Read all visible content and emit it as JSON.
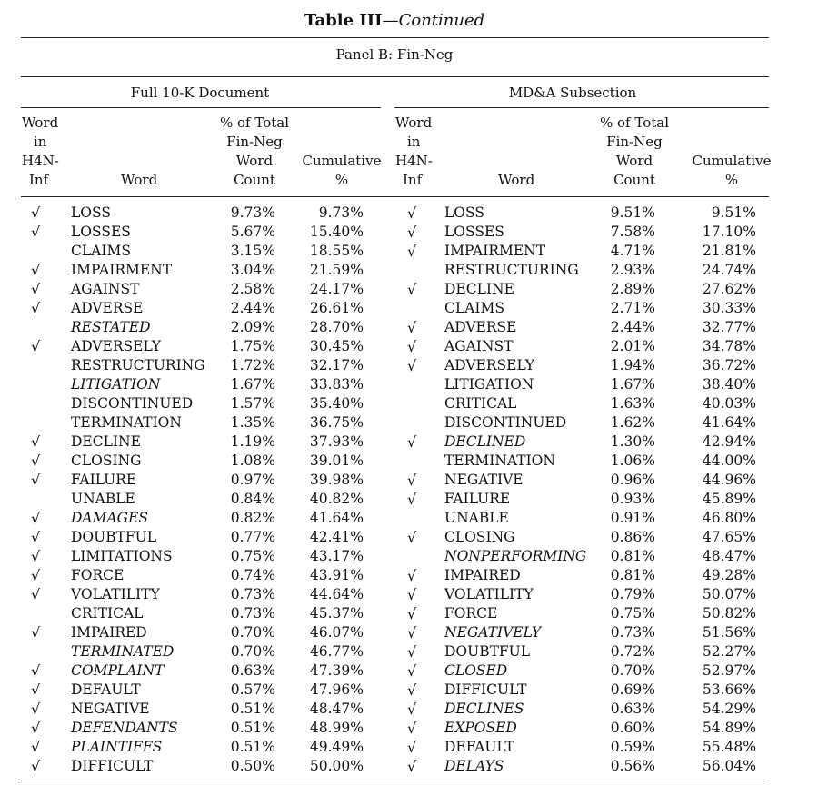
{
  "title": {
    "bold": "Table III",
    "italic": "—Continued"
  },
  "panel": "Panel B: Fin-Neg",
  "groups": {
    "left": "Full 10-K Document",
    "right": "MD&A Subsection"
  },
  "headers": {
    "word_in_h4n": [
      "Word",
      "in",
      "H4N-",
      "Inf"
    ],
    "word": "Word",
    "pct_total": [
      "% of Total",
      "Fin-Neg",
      "Word",
      "Count"
    ],
    "cumulative": [
      "Cumulative",
      "%"
    ]
  },
  "check_symbol": "√",
  "left_rows": [
    {
      "check": true,
      "word": "LOSS",
      "italic": false,
      "pct": "9.73%",
      "cum": "9.73%"
    },
    {
      "check": true,
      "word": "LOSSES",
      "italic": false,
      "pct": "5.67%",
      "cum": "15.40%"
    },
    {
      "check": false,
      "word": "CLAIMS",
      "italic": false,
      "pct": "3.15%",
      "cum": "18.55%"
    },
    {
      "check": true,
      "word": "IMPAIRMENT",
      "italic": false,
      "pct": "3.04%",
      "cum": "21.59%"
    },
    {
      "check": true,
      "word": "AGAINST",
      "italic": false,
      "pct": "2.58%",
      "cum": "24.17%"
    },
    {
      "check": true,
      "word": "ADVERSE",
      "italic": false,
      "pct": "2.44%",
      "cum": "26.61%"
    },
    {
      "check": false,
      "word": "RESTATED",
      "italic": true,
      "pct": "2.09%",
      "cum": "28.70%"
    },
    {
      "check": true,
      "word": "ADVERSELY",
      "italic": false,
      "pct": "1.75%",
      "cum": "30.45%"
    },
    {
      "check": false,
      "word": "RESTRUCTURING",
      "italic": false,
      "pct": "1.72%",
      "cum": "32.17%"
    },
    {
      "check": false,
      "word": "LITIGATION",
      "italic": true,
      "pct": "1.67%",
      "cum": "33.83%"
    },
    {
      "check": false,
      "word": "DISCONTINUED",
      "italic": false,
      "pct": "1.57%",
      "cum": "35.40%"
    },
    {
      "check": false,
      "word": "TERMINATION",
      "italic": false,
      "pct": "1.35%",
      "cum": "36.75%"
    },
    {
      "check": true,
      "word": "DECLINE",
      "italic": false,
      "pct": "1.19%",
      "cum": "37.93%"
    },
    {
      "check": true,
      "word": "CLOSING",
      "italic": false,
      "pct": "1.08%",
      "cum": "39.01%"
    },
    {
      "check": true,
      "word": "FAILURE",
      "italic": false,
      "pct": "0.97%",
      "cum": "39.98%"
    },
    {
      "check": false,
      "word": "UNABLE",
      "italic": false,
      "pct": "0.84%",
      "cum": "40.82%"
    },
    {
      "check": true,
      "word": "DAMAGES",
      "italic": true,
      "pct": "0.82%",
      "cum": "41.64%"
    },
    {
      "check": true,
      "word": "DOUBTFUL",
      "italic": false,
      "pct": "0.77%",
      "cum": "42.41%"
    },
    {
      "check": true,
      "word": "LIMITATIONS",
      "italic": false,
      "pct": "0.75%",
      "cum": "43.17%"
    },
    {
      "check": true,
      "word": "FORCE",
      "italic": false,
      "pct": "0.74%",
      "cum": "43.91%"
    },
    {
      "check": true,
      "word": "VOLATILITY",
      "italic": false,
      "pct": "0.73%",
      "cum": "44.64%"
    },
    {
      "check": false,
      "word": "CRITICAL",
      "italic": false,
      "pct": "0.73%",
      "cum": "45.37%"
    },
    {
      "check": true,
      "word": "IMPAIRED",
      "italic": false,
      "pct": "0.70%",
      "cum": "46.07%"
    },
    {
      "check": false,
      "word": "TERMINATED",
      "italic": true,
      "pct": "0.70%",
      "cum": "46.77%"
    },
    {
      "check": true,
      "word": "COMPLAINT",
      "italic": true,
      "pct": "0.63%",
      "cum": "47.39%"
    },
    {
      "check": true,
      "word": "DEFAULT",
      "italic": false,
      "pct": "0.57%",
      "cum": "47.96%"
    },
    {
      "check": true,
      "word": "NEGATIVE",
      "italic": false,
      "pct": "0.51%",
      "cum": "48.47%"
    },
    {
      "check": true,
      "word": "DEFENDANTS",
      "italic": true,
      "pct": "0.51%",
      "cum": "48.99%"
    },
    {
      "check": true,
      "word": "PLAINTIFFS",
      "italic": true,
      "pct": "0.51%",
      "cum": "49.49%"
    },
    {
      "check": true,
      "word": "DIFFICULT",
      "italic": false,
      "pct": "0.50%",
      "cum": "50.00%"
    }
  ],
  "right_rows": [
    {
      "check": true,
      "word": "LOSS",
      "italic": false,
      "pct": "9.51%",
      "cum": "9.51%"
    },
    {
      "check": true,
      "word": "LOSSES",
      "italic": false,
      "pct": "7.58%",
      "cum": "17.10%"
    },
    {
      "check": true,
      "word": "IMPAIRMENT",
      "italic": false,
      "pct": "4.71%",
      "cum": "21.81%"
    },
    {
      "check": false,
      "word": "RESTRUCTURING",
      "italic": false,
      "pct": "2.93%",
      "cum": "24.74%"
    },
    {
      "check": true,
      "word": "DECLINE",
      "italic": false,
      "pct": "2.89%",
      "cum": "27.62%"
    },
    {
      "check": false,
      "word": "CLAIMS",
      "italic": false,
      "pct": "2.71%",
      "cum": "30.33%"
    },
    {
      "check": true,
      "word": "ADVERSE",
      "italic": false,
      "pct": "2.44%",
      "cum": "32.77%"
    },
    {
      "check": true,
      "word": "AGAINST",
      "italic": false,
      "pct": "2.01%",
      "cum": "34.78%"
    },
    {
      "check": true,
      "word": "ADVERSELY",
      "italic": false,
      "pct": "1.94%",
      "cum": "36.72%"
    },
    {
      "check": false,
      "word": "LITIGATION",
      "italic": false,
      "pct": "1.67%",
      "cum": "38.40%"
    },
    {
      "check": false,
      "word": "CRITICAL",
      "italic": false,
      "pct": "1.63%",
      "cum": "40.03%"
    },
    {
      "check": false,
      "word": "DISCONTINUED",
      "italic": false,
      "pct": "1.62%",
      "cum": "41.64%"
    },
    {
      "check": true,
      "word": "DECLINED",
      "italic": true,
      "pct": "1.30%",
      "cum": "42.94%"
    },
    {
      "check": false,
      "word": "TERMINATION",
      "italic": false,
      "pct": "1.06%",
      "cum": "44.00%"
    },
    {
      "check": true,
      "word": "NEGATIVE",
      "italic": false,
      "pct": "0.96%",
      "cum": "44.96%"
    },
    {
      "check": true,
      "word": "FAILURE",
      "italic": false,
      "pct": "0.93%",
      "cum": "45.89%"
    },
    {
      "check": false,
      "word": "UNABLE",
      "italic": false,
      "pct": "0.91%",
      "cum": "46.80%"
    },
    {
      "check": true,
      "word": "CLOSING",
      "italic": false,
      "pct": "0.86%",
      "cum": "47.65%"
    },
    {
      "check": false,
      "word": "NONPERFORMING",
      "italic": true,
      "pct": "0.81%",
      "cum": "48.47%"
    },
    {
      "check": true,
      "word": "IMPAIRED",
      "italic": false,
      "pct": "0.81%",
      "cum": "49.28%"
    },
    {
      "check": true,
      "word": "VOLATILITY",
      "italic": false,
      "pct": "0.79%",
      "cum": "50.07%"
    },
    {
      "check": true,
      "word": "FORCE",
      "italic": false,
      "pct": "0.75%",
      "cum": "50.82%"
    },
    {
      "check": true,
      "word": "NEGATIVELY",
      "italic": true,
      "pct": "0.73%",
      "cum": "51.56%"
    },
    {
      "check": true,
      "word": "DOUBTFUL",
      "italic": false,
      "pct": "0.72%",
      "cum": "52.27%"
    },
    {
      "check": true,
      "word": "CLOSED",
      "italic": true,
      "pct": "0.70%",
      "cum": "52.97%"
    },
    {
      "check": true,
      "word": "DIFFICULT",
      "italic": false,
      "pct": "0.69%",
      "cum": "53.66%"
    },
    {
      "check": true,
      "word": "DECLINES",
      "italic": true,
      "pct": "0.63%",
      "cum": "54.29%"
    },
    {
      "check": true,
      "word": "EXPOSED",
      "italic": true,
      "pct": "0.60%",
      "cum": "54.89%"
    },
    {
      "check": true,
      "word": "DEFAULT",
      "italic": false,
      "pct": "0.59%",
      "cum": "55.48%"
    },
    {
      "check": true,
      "word": "DELAYS",
      "italic": true,
      "pct": "0.56%",
      "cum": "56.04%"
    }
  ]
}
